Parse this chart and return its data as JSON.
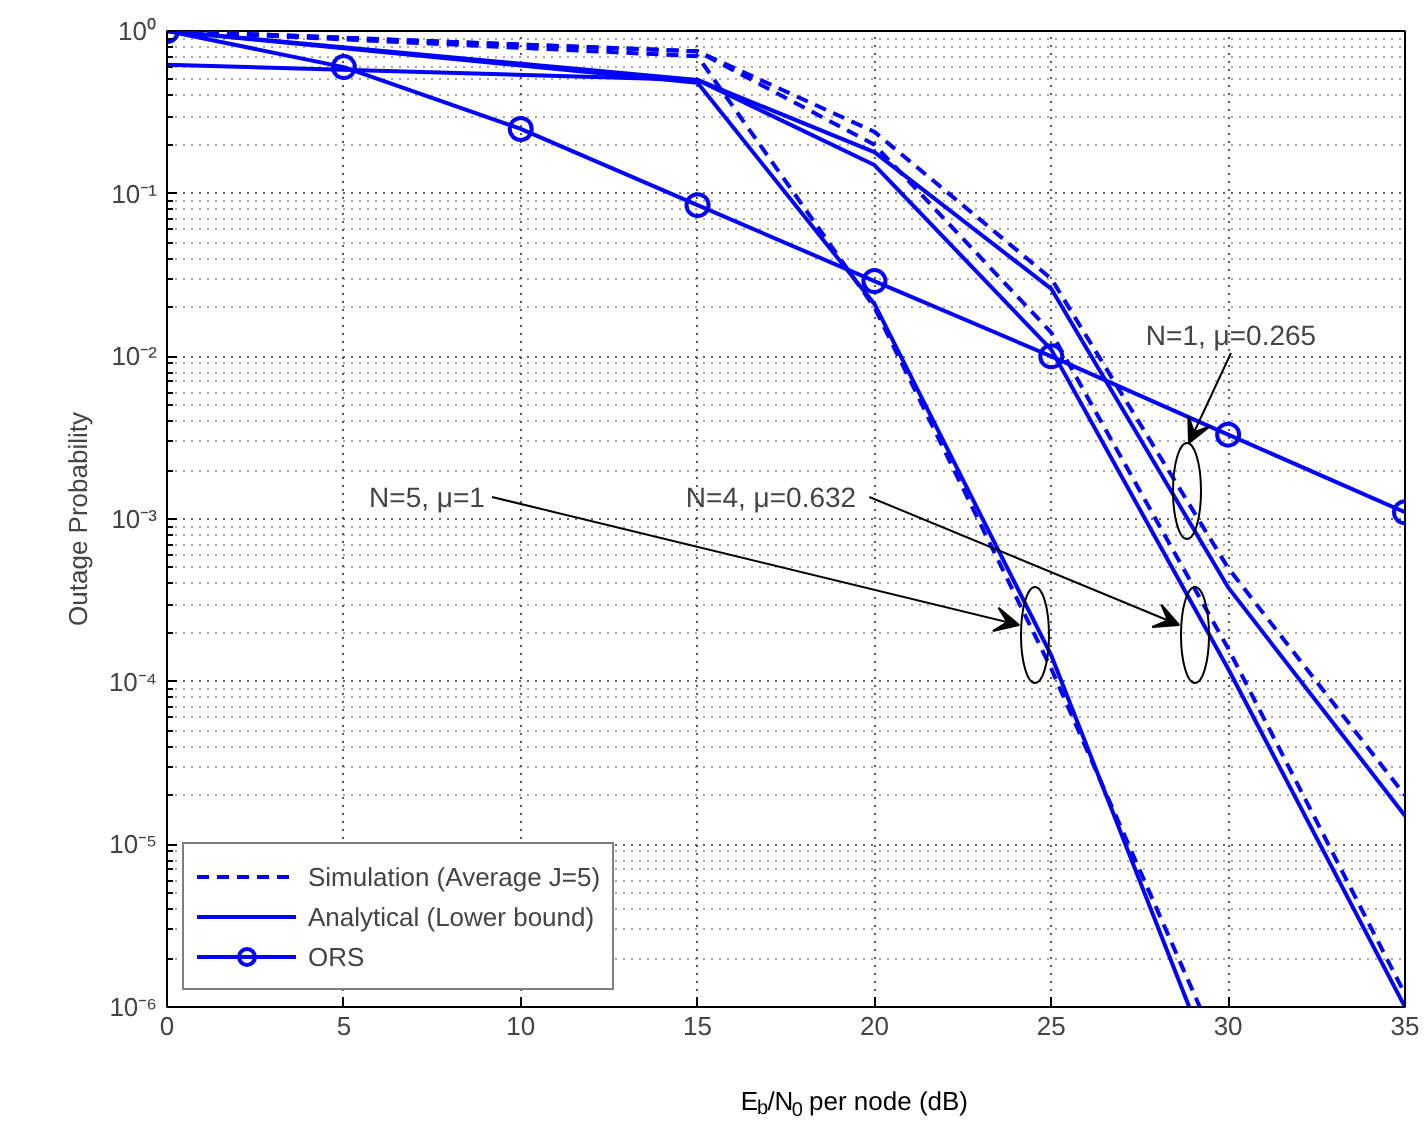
{
  "chart_data": {
    "type": "line",
    "xlabel": "E$_{b}$/N$_{0}$ per node (dB)",
    "ylabel": "Outage Probability",
    "xlim": [
      0,
      35
    ],
    "xticks": [
      0,
      5,
      10,
      15,
      20,
      25,
      30,
      35
    ],
    "ylim": [
      1e-06,
      1
    ],
    "yticks": [
      {
        "value": 1e-06,
        "label": "10⁻⁶"
      },
      {
        "value": 1e-05,
        "label": "10⁻⁵"
      },
      {
        "value": 0.0001,
        "label": "10⁻⁴"
      },
      {
        "value": 0.001,
        "label": "10⁻³"
      },
      {
        "value": 0.01,
        "label": "10⁻²"
      },
      {
        "value": 0.1,
        "label": "10⁻¹"
      },
      {
        "value": 1,
        "label": "10⁰"
      }
    ],
    "log": "y",
    "grid": true,
    "legend": "bottom left",
    "series": [
      {
        "name": "Simulation (Average J=5)",
        "color": "#0000ff",
        "line_style": "dashed",
        "marker": "none",
        "x": [
          0,
          15,
          20,
          25,
          30,
          35
        ],
        "values": [
          1,
          0.75,
          0.24,
          0.03,
          0.0005,
          2e-05
        ]
      },
      {
        "color": "#0000ff",
        "line_style": "dashed",
        "marker": "none",
        "x": [
          0,
          15,
          20,
          25,
          30,
          35
        ],
        "values": [
          1,
          0.75,
          0.2,
          0.014,
          0.00016,
          1.2e-06
        ]
      },
      {
        "color": "#0000ff",
        "line_style": "dashed",
        "marker": "none",
        "x": [
          0,
          15,
          20,
          25,
          29.2
        ],
        "values": [
          1,
          0.7,
          0.02,
          0.00012,
          1e-06
        ]
      },
      {
        "name": "Analytical (Lower bound)",
        "color": "#0000ff",
        "line_style": "solid",
        "marker": "none",
        "x": [
          0,
          15,
          20,
          25,
          30,
          35
        ],
        "values": [
          0.62,
          0.5,
          0.18,
          0.026,
          0.00038,
          1.5e-05
        ]
      },
      {
        "color": "#0000ff",
        "line_style": "solid",
        "marker": "none",
        "x": [
          0,
          15,
          20,
          25,
          30,
          35
        ],
        "values": [
          1,
          0.5,
          0.15,
          0.011,
          0.00012,
          1e-06
        ]
      },
      {
        "color": "#0000ff",
        "line_style": "solid",
        "marker": "none",
        "x": [
          0,
          15,
          20,
          25,
          28.9
        ],
        "values": [
          1,
          0.48,
          0.021,
          0.000145,
          1e-06
        ]
      },
      {
        "name": "ORS",
        "color": "#0000ff",
        "line_style": "solid",
        "marker": "circle",
        "x": [
          0,
          5,
          10,
          15,
          20,
          25,
          30,
          35
        ],
        "values": [
          1,
          0.6,
          0.25,
          0.085,
          0.029,
          0.01,
          0.0033,
          0.0011
        ]
      }
    ],
    "annotations": [
      "N=5, μ=1",
      "N=4, μ=0.632",
      "N=1, μ=0.265"
    ]
  }
}
